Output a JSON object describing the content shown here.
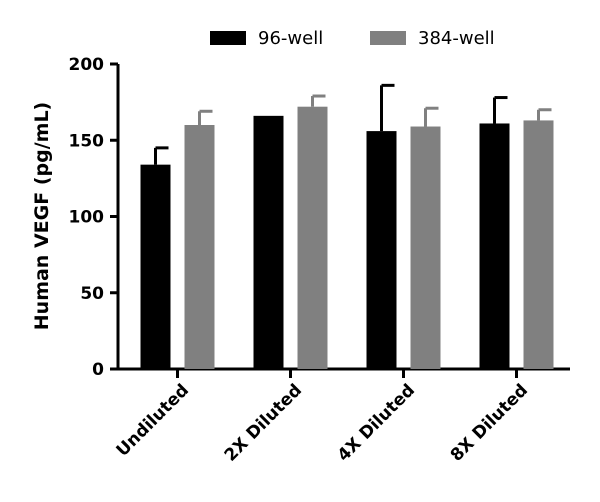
{
  "chart_data": {
    "type": "bar",
    "title": "",
    "xlabel": "",
    "ylabel": "Human VEGF (pg/mL)",
    "ylim": [
      0,
      200
    ],
    "yticks": [
      0,
      50,
      100,
      150,
      200
    ],
    "grid": false,
    "legend_position": "top",
    "categories": [
      "Undiluted",
      "2X Diluted",
      "4X Diluted",
      "8X Diluted"
    ],
    "series": [
      {
        "name": "96-well",
        "color": "#000000",
        "values": [
          134,
          166,
          156,
          161
        ],
        "errors": [
          11,
          0,
          30,
          17
        ]
      },
      {
        "name": "384-well",
        "color": "#808080",
        "values": [
          160,
          172,
          159,
          163
        ],
        "errors": [
          9,
          7,
          12,
          7
        ]
      }
    ]
  }
}
